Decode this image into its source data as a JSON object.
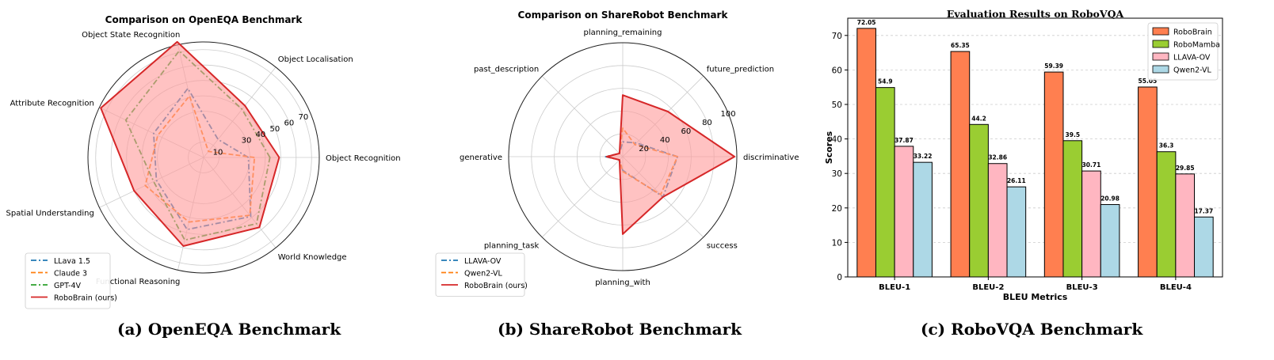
{
  "chart_data": [
    {
      "type": "radar",
      "title": "Comparison on OpenEQA Benchmark",
      "caption": "(a)  OpenEQA Benchmark",
      "categories": [
        "Object Recognition",
        "Object Localisation",
        "Object State Recognition",
        "Attribute Recognition",
        "Spatial Understanding",
        "Functional Reasoning",
        "World Knowledge"
      ],
      "rlim": [
        0,
        75
      ],
      "rticks": [
        10,
        30,
        40,
        50,
        60,
        70
      ],
      "rtick_labels": [
        "10",
        "30",
        "40",
        "50",
        "60",
        "70"
      ],
      "grid": true,
      "legend": "bottom-left",
      "series": [
        {
          "name": "LLava 1.5",
          "color": "#1f77b4",
          "dash": "dashdot",
          "values": [
            29,
            15,
            46,
            36,
            34,
            48,
            49
          ]
        },
        {
          "name": "Claude 3",
          "color": "#ff7f0e",
          "dash": "dashed",
          "values": [
            33,
            5,
            41,
            33,
            42,
            43,
            48
          ]
        },
        {
          "name": "GPT-4V",
          "color": "#2ca02c",
          "dash": "dashdot",
          "values": [
            43,
            40,
            71,
            56,
            36,
            55,
            55
          ]
        },
        {
          "name": "RoboBrain (ours)",
          "color": "#d62728",
          "dash": "solid",
          "fill": "#ff9999",
          "values": [
            49,
            43,
            77,
            74,
            50,
            59,
            58
          ]
        }
      ]
    },
    {
      "type": "radar",
      "title": "Comparison on ShareRobot Benchmark",
      "caption": "(b)  ShareRobot Benchmark",
      "categories": [
        "discriminative",
        "future_prediction",
        "planning_remaining",
        "past_description",
        "generative",
        "planning_task",
        "planning_with",
        "success"
      ],
      "rlim": [
        0,
        100
      ],
      "rticks": [
        20,
        40,
        60,
        80,
        100
      ],
      "rtick_labels": [
        "20",
        "40",
        "60",
        "80",
        "100"
      ],
      "grid": true,
      "legend": "bottom-left",
      "series": [
        {
          "name": "LLAVA-OV",
          "color": "#1f77b4",
          "dash": "dashdot",
          "values": [
            48,
            17,
            13,
            4,
            15,
            4,
            12,
            50
          ]
        },
        {
          "name": "Qwen2-VL",
          "color": "#ff7f0e",
          "dash": "dashed",
          "values": [
            48,
            15,
            25,
            4,
            14,
            4,
            13,
            47
          ]
        },
        {
          "name": "RoboBrain (ours)",
          "color": "#d62728",
          "dash": "solid",
          "fill": "#ff9999",
          "values": [
            98,
            56,
            54,
            4,
            14,
            4,
            68,
            50
          ]
        }
      ]
    },
    {
      "type": "bar",
      "title": "Evaluation Results on RoboVQA",
      "caption": "(c)  RoboVQA Benchmark",
      "xlabel": "BLEU Metrics",
      "ylabel": "Scores",
      "ylim": [
        0,
        75
      ],
      "yticks": [
        0,
        10,
        20,
        30,
        40,
        50,
        60,
        70
      ],
      "grid": true,
      "legend": "top-right",
      "categories": [
        "BLEU-1",
        "BLEU-2",
        "BLEU-3",
        "BLEU-4"
      ],
      "series": [
        {
          "name": "RoboBrain",
          "color": "#ff7f50",
          "values": [
            72.05,
            65.35,
            59.39,
            55.05
          ]
        },
        {
          "name": "RoboMamba",
          "color": "#9acd32",
          "values": [
            54.9,
            44.2,
            39.5,
            36.3
          ]
        },
        {
          "name": "LLAVA-OV",
          "color": "#ffb6c1",
          "values": [
            37.87,
            32.86,
            30.71,
            29.85
          ]
        },
        {
          "name": "Qwen2-VL",
          "color": "#add8e6",
          "values": [
            33.22,
            26.11,
            20.98,
            17.37
          ]
        }
      ]
    }
  ]
}
